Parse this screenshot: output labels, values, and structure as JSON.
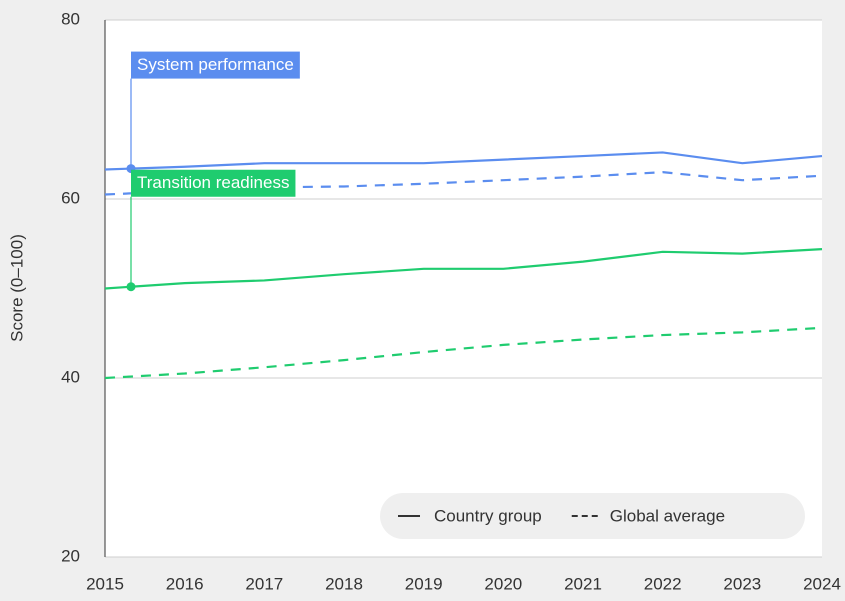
{
  "chart_data": {
    "type": "line",
    "y_label": "Score (0–100)",
    "x": [
      2015,
      2016,
      2017,
      2018,
      2019,
      2020,
      2021,
      2022,
      2023,
      2024
    ],
    "xlim": [
      2015,
      2024
    ],
    "xticks": [
      2015,
      2016,
      2017,
      2018,
      2019,
      2020,
      2021,
      2022,
      2023,
      2024
    ],
    "ylim": [
      20,
      80
    ],
    "yticks": [
      20,
      40,
      60,
      80
    ],
    "grid": true,
    "legend": [
      "Country group",
      "Global average"
    ],
    "series": [
      {
        "name": "System performance",
        "color": "#5b8def",
        "values": [
          63.3,
          63.6,
          64.0,
          64.0,
          64.0,
          64.4,
          64.8,
          65.2,
          64.0,
          64.8
        ],
        "global_values": [
          60.5,
          60.9,
          61.3,
          61.4,
          61.7,
          62.1,
          62.5,
          63.0,
          62.1,
          62.6
        ]
      },
      {
        "name": "Transition readiness",
        "color": "#1fcc6f",
        "values": [
          50.0,
          50.6,
          50.9,
          51.6,
          52.2,
          52.2,
          53.0,
          54.1,
          53.9,
          54.4
        ],
        "global_values": [
          40.0,
          40.5,
          41.2,
          42.0,
          42.9,
          43.7,
          44.3,
          44.8,
          45.1,
          45.6
        ]
      }
    ]
  }
}
